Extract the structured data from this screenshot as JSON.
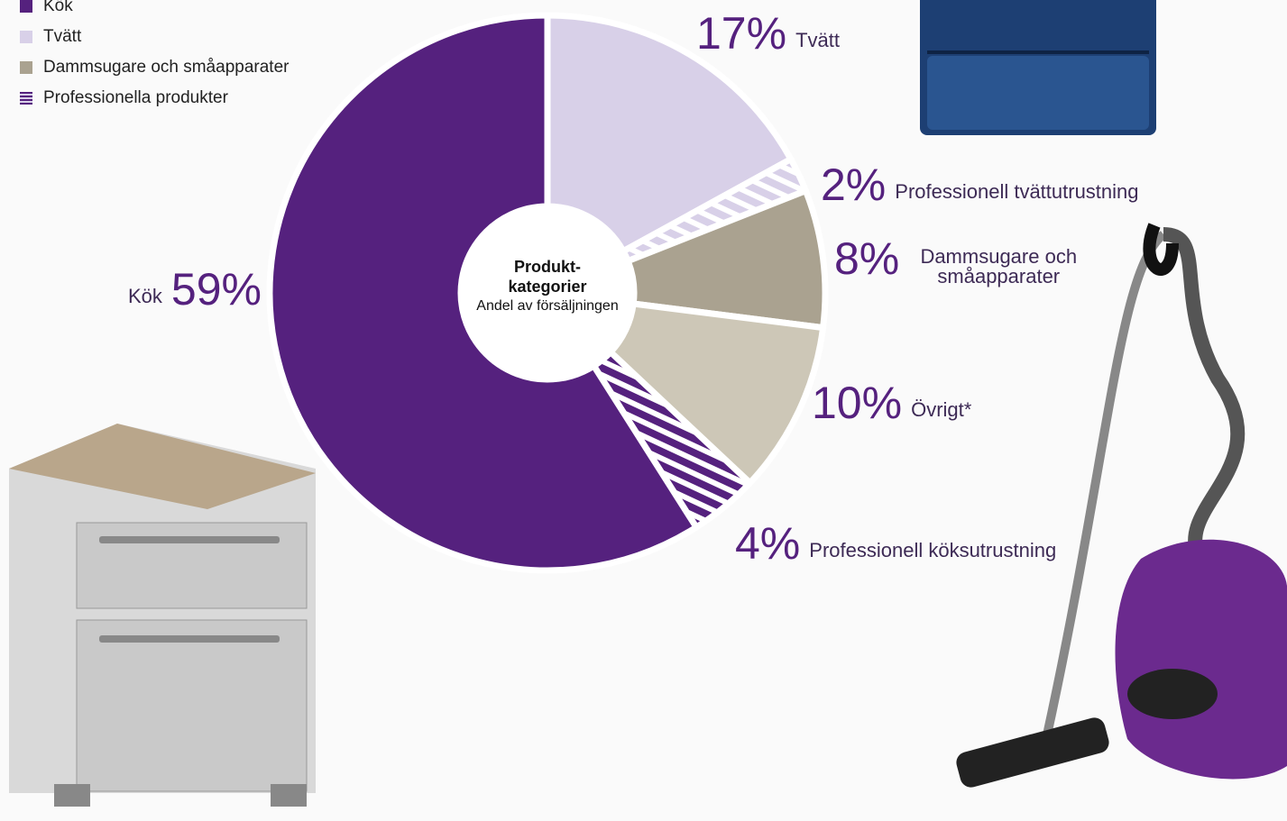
{
  "chart_data": {
    "type": "donut",
    "title": "Produkt-kategorier",
    "subtitle": "Andel av försäljningen",
    "categories": [
      "Tvätt",
      "Professionell tvättutrustning",
      "Dammsugare och småapparater",
      "Övrigt*",
      "Professionell köksutrustning",
      "Kök"
    ],
    "values": [
      17,
      2,
      8,
      10,
      4,
      59
    ],
    "value_labels": [
      "17%",
      "2%",
      "8%",
      "10%",
      "4%",
      "59%"
    ],
    "colors": [
      "#d8d0e8",
      "#d8d0e8",
      "#aaa290",
      "#cdc7b7",
      "#55217e",
      "#55217e"
    ],
    "hatched": [
      false,
      true,
      false,
      false,
      true,
      false
    ],
    "legend": [
      {
        "name": "Kök",
        "color": "#55217e",
        "hatched": false
      },
      {
        "name": "Tvätt",
        "color": "#d8d0e8",
        "hatched": false
      },
      {
        "name": "Dammsugare och småapparater",
        "color": "#aaa290",
        "hatched": false
      },
      {
        "name": "Professionella produkter",
        "color": "#55217e",
        "hatched": true
      }
    ]
  }
}
